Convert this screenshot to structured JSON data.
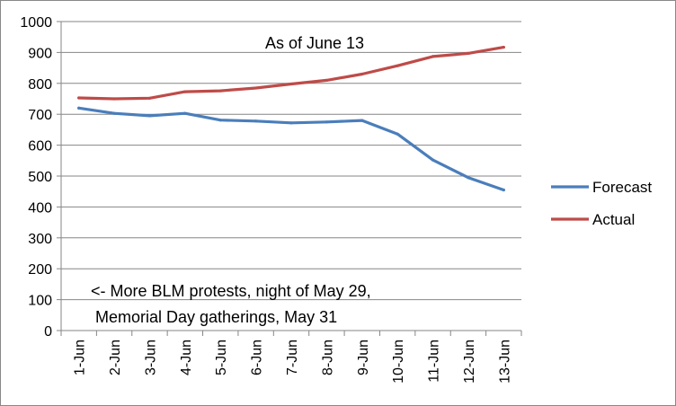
{
  "chart_data": {
    "type": "line",
    "categories": [
      "1-Jun",
      "2-Jun",
      "3-Jun",
      "4-Jun",
      "5-Jun",
      "6-Jun",
      "7-Jun",
      "8-Jun",
      "9-Jun",
      "10-Jun",
      "11-Jun",
      "12-Jun",
      "13-Jun"
    ],
    "series": [
      {
        "name": "Forecast",
        "color": "#4a7ebb",
        "values": [
          720,
          703,
          695,
          703,
          681,
          678,
          672,
          675,
          680,
          636,
          552,
          495,
          455
        ]
      },
      {
        "name": "Actual",
        "color": "#be4b48",
        "values": [
          753,
          750,
          752,
          773,
          776,
          785,
          798,
          810,
          830,
          857,
          887,
          897,
          917
        ]
      }
    ],
    "ylim": [
      0,
      1000
    ],
    "yticks": [
      0,
      100,
      200,
      300,
      400,
      500,
      600,
      700,
      800,
      900,
      1000
    ],
    "grid": true,
    "legend_position": "right",
    "annotations": [
      "As of June 13",
      "<- More BLM protests, night of May 29,",
      "Memorial Day gatherings, May 31"
    ]
  }
}
